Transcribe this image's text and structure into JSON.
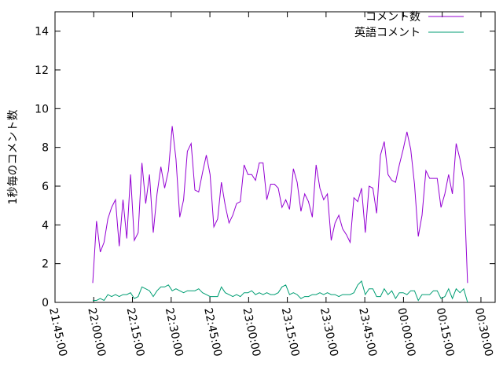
{
  "chart_data": {
    "type": "line",
    "ylabel": "1秒毎のコメント数",
    "x": [
      79176,
      79264,
      79352,
      79440,
      79528,
      79616,
      79704,
      79792,
      79880,
      79968,
      80056,
      80144,
      80232,
      80320,
      80408,
      80496,
      80584,
      80672,
      80760,
      80848,
      80936,
      81024,
      81112,
      81200,
      81288,
      81376,
      81464,
      81552,
      81640,
      81728,
      81816,
      81904,
      81992,
      82080,
      82168,
      82256,
      82344,
      82432,
      82520,
      82608,
      82696,
      82784,
      82872,
      82960,
      83048,
      83136,
      83224,
      83312,
      83400,
      83488,
      83576,
      83664,
      83752,
      83840,
      83928,
      84016,
      84104,
      84192,
      84280,
      84368,
      84456,
      84544,
      84632,
      84720,
      84808,
      84896,
      84984,
      85072,
      85160,
      85248,
      85336,
      85424,
      85512,
      85600,
      85688,
      85776,
      85864,
      85952,
      86040,
      86128,
      86216,
      86304,
      86392,
      86480,
      86568,
      86656,
      86744,
      86832,
      86920,
      87008,
      87096,
      87184,
      87272,
      87360,
      87448,
      87536,
      87624,
      87712,
      87800,
      87888
    ],
    "series": [
      {
        "name": "コメント数",
        "color": "#9400d3",
        "values": [
          1.0,
          4.2,
          2.6,
          3.1,
          4.3,
          4.9,
          5.3,
          2.9,
          5.3,
          3.3,
          6.6,
          3.2,
          3.6,
          7.2,
          5.1,
          6.6,
          3.6,
          5.6,
          7.0,
          5.9,
          6.8,
          9.1,
          7.4,
          4.4,
          5.3,
          7.8,
          8.2,
          5.8,
          5.7,
          6.7,
          7.6,
          6.6,
          3.9,
          4.3,
          6.2,
          5.0,
          4.1,
          4.5,
          5.1,
          5.2,
          7.1,
          6.6,
          6.6,
          6.3,
          7.2,
          7.2,
          5.3,
          6.1,
          6.1,
          5.9,
          4.9,
          5.3,
          4.8,
          6.9,
          6.2,
          4.7,
          5.6,
          5.2,
          4.4,
          7.1,
          5.9,
          5.3,
          5.6,
          3.2,
          4.1,
          4.5,
          3.8,
          3.5,
          3.1,
          5.4,
          5.2,
          5.9,
          3.6,
          6.0,
          5.9,
          4.6,
          7.6,
          8.3,
          6.6,
          6.3,
          6.2,
          7.1,
          7.9,
          8.8,
          7.9,
          6.1,
          3.4,
          4.5,
          6.8,
          6.4,
          6.4,
          6.4,
          4.9,
          5.6,
          6.6,
          5.6,
          8.2,
          7.4,
          6.3,
          1.0
        ]
      },
      {
        "name": "英語コメント",
        "color": "#009e73",
        "values": [
          0.1,
          0.1,
          0.2,
          0.1,
          0.4,
          0.3,
          0.4,
          0.3,
          0.4,
          0.4,
          0.5,
          0.2,
          0.3,
          0.8,
          0.7,
          0.6,
          0.3,
          0.6,
          0.8,
          0.8,
          0.9,
          0.6,
          0.7,
          0.6,
          0.5,
          0.6,
          0.6,
          0.6,
          0.7,
          0.5,
          0.4,
          0.3,
          0.3,
          0.3,
          0.8,
          0.5,
          0.4,
          0.3,
          0.4,
          0.3,
          0.5,
          0.5,
          0.6,
          0.4,
          0.5,
          0.4,
          0.5,
          0.4,
          0.4,
          0.5,
          0.8,
          0.9,
          0.4,
          0.5,
          0.4,
          0.2,
          0.3,
          0.3,
          0.4,
          0.4,
          0.5,
          0.4,
          0.5,
          0.4,
          0.4,
          0.3,
          0.4,
          0.4,
          0.4,
          0.5,
          0.9,
          1.1,
          0.4,
          0.7,
          0.7,
          0.3,
          0.3,
          0.7,
          0.4,
          0.6,
          0.2,
          0.5,
          0.5,
          0.4,
          0.6,
          0.6,
          0.1,
          0.4,
          0.4,
          0.4,
          0.6,
          0.6,
          0.2,
          0.3,
          0.7,
          0.2,
          0.7,
          0.5,
          0.7,
          0.0
        ]
      }
    ],
    "xlim": [
      78300,
      88530
    ],
    "xticks": [
      {
        "value": 78300,
        "label": "21:45:00"
      },
      {
        "value": 79200,
        "label": "22:00:00"
      },
      {
        "value": 80100,
        "label": "22:15:00"
      },
      {
        "value": 81000,
        "label": "22:30:00"
      },
      {
        "value": 81900,
        "label": "22:45:00"
      },
      {
        "value": 82800,
        "label": "23:00:00"
      },
      {
        "value": 83700,
        "label": "23:15:00"
      },
      {
        "value": 84600,
        "label": "23:30:00"
      },
      {
        "value": 85500,
        "label": "23:45:00"
      },
      {
        "value": 86400,
        "label": "00:00:00"
      },
      {
        "value": 87300,
        "label": "00:15:00"
      },
      {
        "value": 88200,
        "label": "00:30:00"
      }
    ],
    "ylim": [
      0,
      15
    ],
    "yticks": [
      0,
      2,
      4,
      6,
      8,
      10,
      12,
      14
    ],
    "grid": false,
    "legend": "top-right"
  }
}
